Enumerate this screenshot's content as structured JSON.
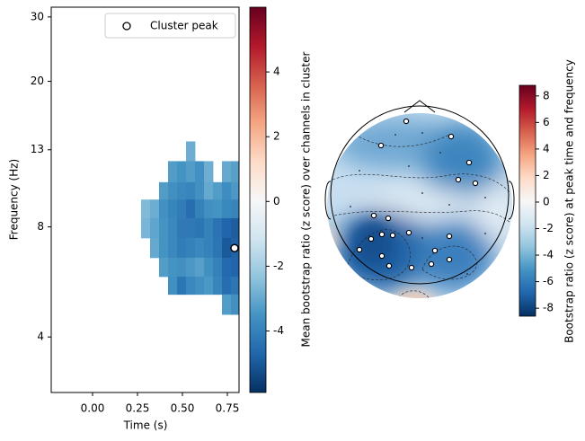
{
  "chart_data": [
    {
      "type": "heatmap",
      "xlabel": "Time (s)",
      "ylabel": "Frequency (Hz)",
      "xlim": [
        -0.23,
        0.815
      ],
      "xticks": [
        {
          "value": 0,
          "label": "0.00"
        },
        0.25,
        {
          "value": 0.5,
          "label": "0.50"
        },
        0.75
      ],
      "ylim": [
        2.82,
        31.9
      ],
      "yticks": [
        4,
        8,
        13,
        20,
        30
      ],
      "log_y": true,
      "time_edges": [
        0.27,
        0.32,
        0.37,
        0.42,
        0.47,
        0.52,
        0.57,
        0.62,
        0.67,
        0.72,
        0.77,
        0.82
      ],
      "freq_edges": [
        13.7,
        12.1,
        10.6,
        9.5,
        8.45,
        7.46,
        6.59,
        5.85,
        5.23,
        4.61
      ],
      "values": [
        [
          null,
          null,
          null,
          null,
          null,
          -2.9,
          null,
          null,
          null,
          null,
          null
        ],
        [
          null,
          null,
          null,
          -3.3,
          -3.5,
          -3.3,
          -3.6,
          -2.9,
          null,
          -3.0,
          -3.2
        ],
        [
          null,
          null,
          -3.3,
          -3.6,
          -3.8,
          -3.9,
          -3.6,
          -3.0,
          -3.3,
          -3.7,
          -3.4
        ],
        [
          -2.6,
          -2.9,
          -3.6,
          -3.9,
          -4.1,
          -4.5,
          -4.0,
          -3.6,
          -3.5,
          -3.8,
          -3.9
        ],
        [
          -2.7,
          -3.1,
          -3.5,
          -3.8,
          -4.2,
          -4.2,
          -4.3,
          -4.0,
          -4.4,
          -4.7,
          -4.9
        ],
        [
          null,
          -3.0,
          -3.5,
          -3.8,
          -4.1,
          -4.0,
          -3.8,
          -4.0,
          -4.3,
          -5.0,
          -4.8
        ],
        [
          null,
          null,
          -3.3,
          -3.5,
          -3.6,
          -3.4,
          -3.2,
          -3.6,
          -4.0,
          -4.6,
          -4.7
        ],
        [
          null,
          null,
          null,
          -3.6,
          -4.3,
          -3.8,
          -3.6,
          -3.4,
          -3.9,
          -4.5,
          -4.3
        ],
        [
          null,
          null,
          null,
          null,
          null,
          null,
          null,
          null,
          null,
          -3.3,
          -3.6
        ]
      ],
      "peak": {
        "name": "Cluster peak",
        "x": 0.79,
        "y": 7.0
      },
      "legend": "upper right",
      "colormap": "RdBu_r",
      "clim": [
        -5.9,
        6.0
      ],
      "cticks": [
        -4,
        -2,
        0,
        2,
        4
      ],
      "clabel": "Mean bootstrap ratio (z score) over channels in cluster"
    },
    {
      "type": "topomap",
      "colormap": "RdBu_r",
      "clim": [
        -8.6,
        8.8
      ],
      "cticks": [
        -8,
        -6,
        -4,
        -2,
        0,
        2,
        4,
        6,
        8
      ],
      "clabel": "Bootstrap ratio (z score) at peak time and frequency"
    }
  ]
}
